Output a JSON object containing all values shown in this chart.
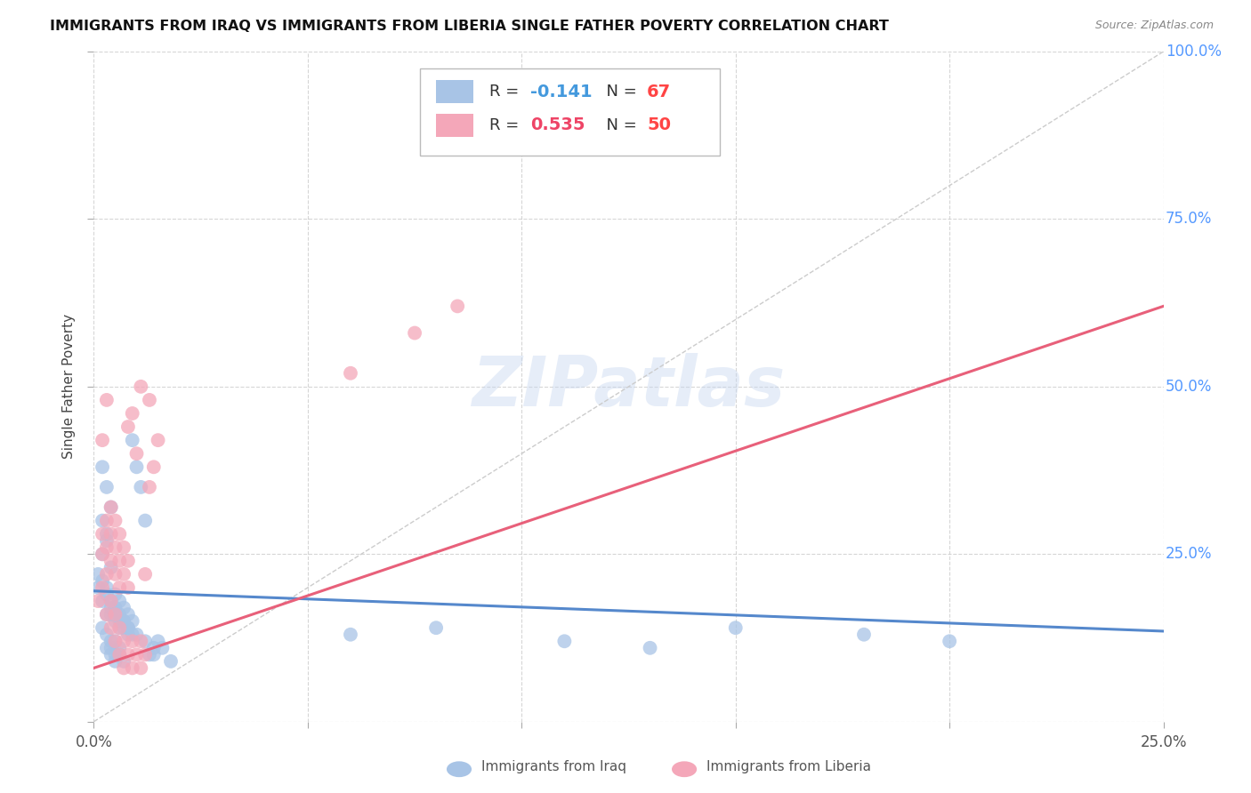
{
  "title": "IMMIGRANTS FROM IRAQ VS IMMIGRANTS FROM LIBERIA SINGLE FATHER POVERTY CORRELATION CHART",
  "source": "Source: ZipAtlas.com",
  "ylabel": "Single Father Poverty",
  "xlim": [
    0.0,
    0.25
  ],
  "ylim": [
    0.0,
    1.0
  ],
  "iraq_color": "#a8c4e6",
  "liberia_color": "#f4a7b9",
  "iraq_line_color": "#5588cc",
  "liberia_line_color": "#e8607a",
  "diag_color": "#cccccc",
  "watermark": "ZIPatlas",
  "background_color": "#ffffff",
  "grid_color": "#cccccc",
  "right_tick_color": "#6699ff",
  "iraq_label": "Immigrants from Iraq",
  "liberia_label": "Immigrants from Liberia",
  "iraq_scatter": [
    [
      0.001,
      0.2
    ],
    [
      0.002,
      0.38
    ],
    [
      0.003,
      0.35
    ],
    [
      0.002,
      0.3
    ],
    [
      0.003,
      0.28
    ],
    [
      0.002,
      0.25
    ],
    [
      0.001,
      0.22
    ],
    [
      0.003,
      0.2
    ],
    [
      0.004,
      0.32
    ],
    [
      0.003,
      0.27
    ],
    [
      0.004,
      0.23
    ],
    [
      0.002,
      0.21
    ],
    [
      0.003,
      0.19
    ],
    [
      0.002,
      0.18
    ],
    [
      0.004,
      0.17
    ],
    [
      0.003,
      0.16
    ],
    [
      0.005,
      0.19
    ],
    [
      0.004,
      0.18
    ],
    [
      0.005,
      0.17
    ],
    [
      0.004,
      0.16
    ],
    [
      0.005,
      0.15
    ],
    [
      0.006,
      0.18
    ],
    [
      0.005,
      0.16
    ],
    [
      0.006,
      0.15
    ],
    [
      0.006,
      0.14
    ],
    [
      0.007,
      0.17
    ],
    [
      0.006,
      0.16
    ],
    [
      0.007,
      0.15
    ],
    [
      0.007,
      0.14
    ],
    [
      0.008,
      0.16
    ],
    [
      0.007,
      0.15
    ],
    [
      0.008,
      0.14
    ],
    [
      0.008,
      0.13
    ],
    [
      0.009,
      0.15
    ],
    [
      0.008,
      0.14
    ],
    [
      0.009,
      0.13
    ],
    [
      0.002,
      0.14
    ],
    [
      0.003,
      0.13
    ],
    [
      0.004,
      0.12
    ],
    [
      0.003,
      0.11
    ],
    [
      0.004,
      0.1
    ],
    [
      0.005,
      0.12
    ],
    [
      0.004,
      0.11
    ],
    [
      0.005,
      0.1
    ],
    [
      0.006,
      0.11
    ],
    [
      0.005,
      0.09
    ],
    [
      0.006,
      0.1
    ],
    [
      0.007,
      0.09
    ],
    [
      0.01,
      0.13
    ],
    [
      0.012,
      0.12
    ],
    [
      0.014,
      0.11
    ],
    [
      0.013,
      0.1
    ],
    [
      0.015,
      0.12
    ],
    [
      0.014,
      0.1
    ],
    [
      0.016,
      0.11
    ],
    [
      0.018,
      0.09
    ],
    [
      0.01,
      0.38
    ],
    [
      0.012,
      0.3
    ],
    [
      0.009,
      0.42
    ],
    [
      0.011,
      0.35
    ],
    [
      0.06,
      0.13
    ],
    [
      0.11,
      0.12
    ],
    [
      0.15,
      0.14
    ],
    [
      0.18,
      0.13
    ],
    [
      0.2,
      0.12
    ],
    [
      0.13,
      0.11
    ],
    [
      0.08,
      0.14
    ]
  ],
  "liberia_scatter": [
    [
      0.001,
      0.18
    ],
    [
      0.002,
      0.2
    ],
    [
      0.002,
      0.25
    ],
    [
      0.003,
      0.22
    ],
    [
      0.002,
      0.28
    ],
    [
      0.003,
      0.3
    ],
    [
      0.003,
      0.26
    ],
    [
      0.004,
      0.32
    ],
    [
      0.004,
      0.28
    ],
    [
      0.004,
      0.24
    ],
    [
      0.005,
      0.3
    ],
    [
      0.005,
      0.26
    ],
    [
      0.005,
      0.22
    ],
    [
      0.006,
      0.28
    ],
    [
      0.006,
      0.24
    ],
    [
      0.006,
      0.2
    ],
    [
      0.007,
      0.26
    ],
    [
      0.007,
      0.22
    ],
    [
      0.008,
      0.24
    ],
    [
      0.008,
      0.2
    ],
    [
      0.003,
      0.16
    ],
    [
      0.004,
      0.14
    ],
    [
      0.004,
      0.18
    ],
    [
      0.005,
      0.16
    ],
    [
      0.005,
      0.12
    ],
    [
      0.006,
      0.14
    ],
    [
      0.006,
      0.1
    ],
    [
      0.007,
      0.12
    ],
    [
      0.007,
      0.08
    ],
    [
      0.008,
      0.1
    ],
    [
      0.009,
      0.12
    ],
    [
      0.009,
      0.08
    ],
    [
      0.01,
      0.1
    ],
    [
      0.011,
      0.12
    ],
    [
      0.011,
      0.08
    ],
    [
      0.012,
      0.1
    ],
    [
      0.013,
      0.35
    ],
    [
      0.014,
      0.38
    ],
    [
      0.015,
      0.42
    ],
    [
      0.012,
      0.22
    ],
    [
      0.009,
      0.46
    ],
    [
      0.01,
      0.4
    ],
    [
      0.008,
      0.44
    ],
    [
      0.011,
      0.5
    ],
    [
      0.013,
      0.48
    ],
    [
      0.06,
      0.52
    ],
    [
      0.075,
      0.58
    ],
    [
      0.085,
      0.62
    ],
    [
      0.002,
      0.42
    ],
    [
      0.003,
      0.48
    ]
  ],
  "iraq_regression": [
    -0.141,
    0.195,
    0.145
  ],
  "liberia_regression": [
    0.535,
    0.15,
    0.7
  ]
}
